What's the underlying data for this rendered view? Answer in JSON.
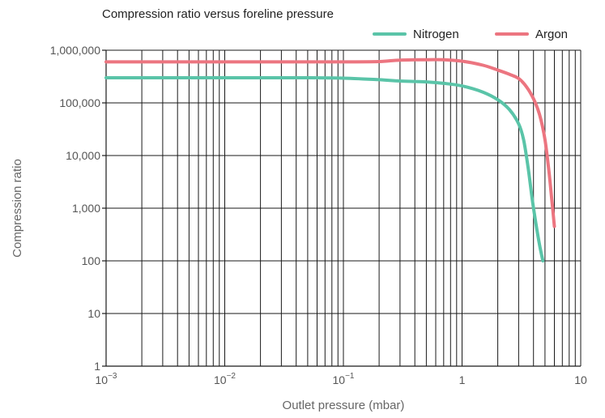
{
  "chart_data": {
    "type": "line",
    "title": "Compression ratio versus foreline pressure",
    "xlabel": "Outlet pressure (mbar)",
    "ylabel": "Compression ratio",
    "xscale": "log",
    "yscale": "log",
    "xlim": [
      0.001,
      10
    ],
    "ylim": [
      1,
      1000000
    ],
    "x_ticks": [
      {
        "value": 0.001,
        "base": "10",
        "exp": "−3"
      },
      {
        "value": 0.01,
        "base": "10",
        "exp": "−2"
      },
      {
        "value": 0.1,
        "base": "10",
        "exp": "−1"
      },
      {
        "value": 1,
        "base": "1",
        "exp": ""
      },
      {
        "value": 10,
        "base": "10",
        "exp": ""
      }
    ],
    "y_ticks": [
      {
        "value": 1,
        "label": "1"
      },
      {
        "value": 10,
        "label": "10"
      },
      {
        "value": 100,
        "label": "100"
      },
      {
        "value": 1000,
        "label": "1,000"
      },
      {
        "value": 10000,
        "label": "10,000"
      },
      {
        "value": 100000,
        "label": "100,000"
      },
      {
        "value": 1000000,
        "label": "1,000,000"
      }
    ],
    "grid": true,
    "legend_position": "top-right",
    "series": [
      {
        "name": "Nitrogen",
        "color": "#5ac4a8",
        "points": [
          [
            0.001,
            300000
          ],
          [
            0.01,
            300000
          ],
          [
            0.05,
            300000
          ],
          [
            0.1,
            295000
          ],
          [
            0.2,
            275000
          ],
          [
            0.3,
            260000
          ],
          [
            0.5,
            250000
          ],
          [
            0.7,
            235000
          ],
          [
            1.0,
            210000
          ],
          [
            1.5,
            160000
          ],
          [
            2.0,
            115000
          ],
          [
            2.5,
            75000
          ],
          [
            3.0,
            40000
          ],
          [
            3.3,
            20000
          ],
          [
            3.6,
            6000
          ],
          [
            3.9,
            1500
          ],
          [
            4.2,
            500
          ],
          [
            4.5,
            200
          ],
          [
            4.8,
            100
          ]
        ]
      },
      {
        "name": "Argon",
        "color": "#ec7580",
        "points": [
          [
            0.001,
            600000
          ],
          [
            0.01,
            600000
          ],
          [
            0.1,
            600000
          ],
          [
            0.2,
            610000
          ],
          [
            0.3,
            650000
          ],
          [
            0.5,
            660000
          ],
          [
            0.7,
            660000
          ],
          [
            1.0,
            620000
          ],
          [
            1.5,
            520000
          ],
          [
            2.0,
            420000
          ],
          [
            2.5,
            350000
          ],
          [
            3.0,
            290000
          ],
          [
            3.5,
            200000
          ],
          [
            4.0,
            120000
          ],
          [
            4.5,
            60000
          ],
          [
            5.0,
            20000
          ],
          [
            5.4,
            5000
          ],
          [
            5.7,
            1500
          ],
          [
            6.0,
            450
          ]
        ]
      }
    ]
  }
}
